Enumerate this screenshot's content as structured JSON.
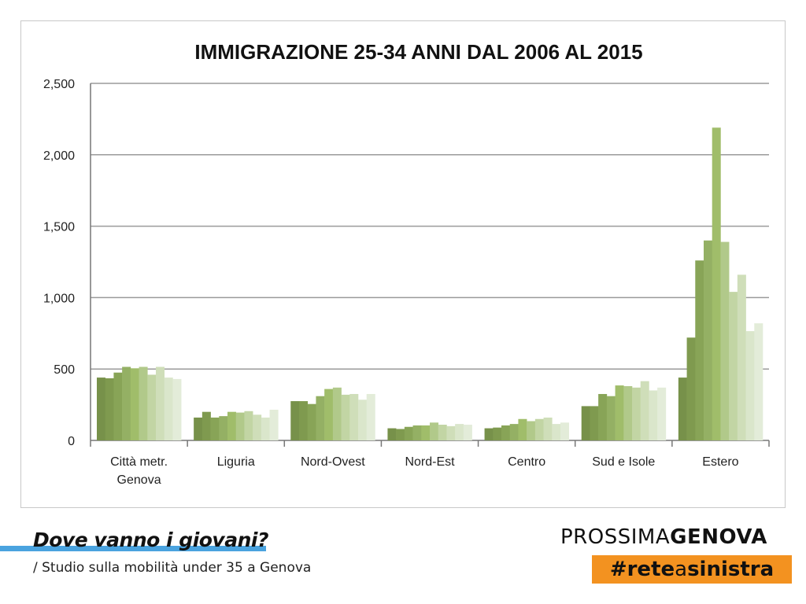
{
  "chart_data": {
    "type": "bar",
    "title": "IMMIGRAZIONE 25-34 ANNI DAL 2006 AL 2015",
    "xlabel": "",
    "ylabel": "",
    "ylim": [
      0,
      2500
    ],
    "yticks": [
      "0",
      "500",
      "1,000",
      "1,500",
      "2,000",
      "2,500"
    ],
    "ytick_values": [
      0,
      500,
      1000,
      1500,
      2000,
      2500
    ],
    "grid": true,
    "legend": "none",
    "categories": [
      "Città metr. Genova",
      "Liguria",
      "Nord-Ovest",
      "Nord-Est",
      "Centro",
      "Sud e Isole",
      "Estero"
    ],
    "category_lines": [
      [
        "Città metr.",
        "Genova"
      ],
      [
        "Liguria"
      ],
      [
        "Nord-Ovest"
      ],
      [
        "Nord-Est"
      ],
      [
        "Centro"
      ],
      [
        "Sud e Isole"
      ],
      [
        "Estero"
      ]
    ],
    "series_count": 10,
    "values": [
      [
        440,
        435,
        475,
        515,
        505,
        515,
        460,
        515,
        440,
        430
      ],
      [
        160,
        200,
        160,
        170,
        200,
        195,
        205,
        180,
        160,
        215
      ],
      [
        275,
        275,
        255,
        310,
        360,
        370,
        320,
        325,
        285,
        325
      ],
      [
        85,
        80,
        95,
        105,
        105,
        125,
        110,
        100,
        115,
        110
      ],
      [
        85,
        90,
        105,
        115,
        150,
        135,
        150,
        160,
        115,
        125
      ],
      [
        240,
        240,
        325,
        310,
        385,
        380,
        370,
        415,
        350,
        370
      ],
      [
        440,
        720,
        1260,
        1400,
        2190,
        1390,
        1040,
        1160,
        765,
        820
      ]
    ],
    "colors": [
      "#77914a",
      "#7f9a4f",
      "#88a457",
      "#94b064",
      "#a0bd6a",
      "#b1c98a",
      "#c2d5a4",
      "#cfdeb9",
      "#dae6cb",
      "#e3ecd9"
    ]
  },
  "footer": {
    "title": "Dove vanno i giovani?",
    "subtitle": "/ Studio sulla mobilità under 35 a Genova"
  },
  "brand": {
    "light": "PROSSIMA",
    "heavy": "GENOVA"
  },
  "tag": {
    "hash": "#rete",
    "mid": "a",
    "end": "sinistra"
  }
}
